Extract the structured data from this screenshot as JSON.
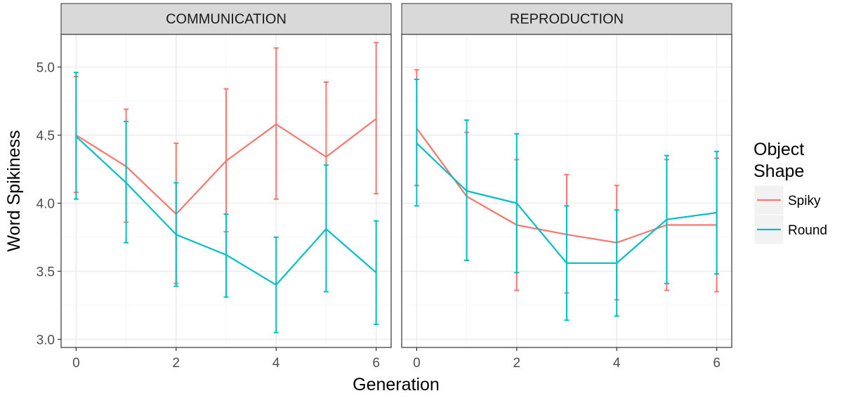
{
  "chart_data": {
    "type": "line",
    "xlabel": "Generation",
    "ylabel": "Word Spikiness",
    "xlim": [
      -0.3,
      6.3
    ],
    "ylim": [
      2.94,
      5.24
    ],
    "x_ticks": [
      0,
      2,
      4,
      6
    ],
    "y_ticks": [
      3.0,
      3.5,
      4.0,
      4.5,
      5.0
    ],
    "y_tick_labels": [
      "3.0",
      "3.5",
      "4.0",
      "4.5",
      "5.0"
    ],
    "grid": true,
    "legend": {
      "title_line1": "Object",
      "title_line2": "Shape",
      "position": "right",
      "entries": [
        "Spiky",
        "Round"
      ]
    },
    "colors": {
      "Spiky": "#F8766D",
      "Round": "#00BFC4"
    },
    "panels": [
      {
        "strip": "COMMUNICATION",
        "series": [
          {
            "name": "Spiky",
            "x": [
              0,
              1,
              2,
              3,
              4,
              5,
              6
            ],
            "y": [
              4.5,
              4.27,
              3.92,
              4.31,
              4.58,
              4.34,
              4.62
            ],
            "lower": [
              4.08,
              3.86,
              3.41,
              3.79,
              4.03,
              3.8,
              4.07
            ],
            "upper": [
              4.93,
              4.69,
              4.44,
              4.84,
              5.14,
              4.89,
              5.18
            ]
          },
          {
            "name": "Round",
            "x": [
              0,
              1,
              2,
              3,
              4,
              5,
              6
            ],
            "y": [
              4.49,
              4.15,
              3.77,
              3.62,
              3.4,
              3.81,
              3.49
            ],
            "lower": [
              4.03,
              3.71,
              3.39,
              3.31,
              3.05,
              3.35,
              3.11
            ],
            "upper": [
              4.96,
              4.6,
              4.15,
              3.92,
              3.75,
              4.28,
              3.87
            ]
          }
        ]
      },
      {
        "strip": "REPRODUCTION",
        "series": [
          {
            "name": "Spiky",
            "x": [
              0,
              1,
              2,
              3,
              4,
              5,
              6
            ],
            "y": [
              4.55,
              4.05,
              3.84,
              3.77,
              3.71,
              3.84,
              3.84
            ],
            "lower": [
              4.13,
              3.58,
              3.36,
              3.34,
              3.29,
              3.36,
              3.35
            ],
            "upper": [
              4.98,
              4.52,
              4.32,
              4.21,
              4.13,
              4.32,
              4.33
            ]
          },
          {
            "name": "Round",
            "x": [
              0,
              1,
              2,
              3,
              4,
              5,
              6
            ],
            "y": [
              4.44,
              4.09,
              4.0,
              3.56,
              3.56,
              3.88,
              3.93
            ],
            "lower": [
              3.98,
              3.58,
              3.49,
              3.14,
              3.17,
              3.41,
              3.48
            ],
            "upper": [
              4.91,
              4.61,
              4.51,
              3.98,
              3.95,
              4.35,
              4.38
            ]
          }
        ]
      }
    ]
  }
}
